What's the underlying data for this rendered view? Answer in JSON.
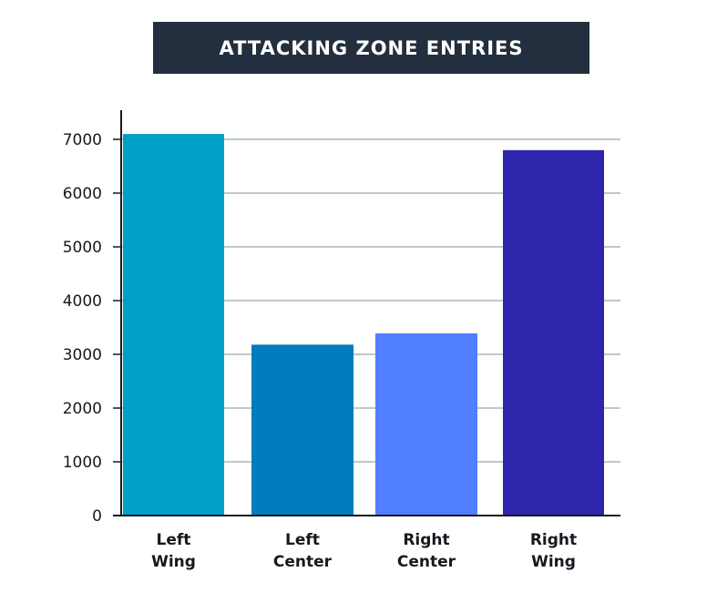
{
  "chart_data": {
    "type": "bar",
    "title": "ATTACKING ZONE ENTRIES",
    "xlabel": "",
    "ylabel": "",
    "categories": [
      [
        "Left",
        "Wing"
      ],
      [
        "Left",
        "Center"
      ],
      [
        "Right",
        "Center"
      ],
      [
        "Right",
        "Wing"
      ]
    ],
    "values": [
      7100,
      3180,
      3390,
      6800
    ],
    "bar_colors": [
      "#00a1c9",
      "#007dbc",
      "#527fff",
      "#2e27ad"
    ],
    "ylim": [
      0,
      7000
    ],
    "yticks": [
      0,
      1000,
      2000,
      3000,
      4000,
      5000,
      6000,
      7000
    ],
    "grid": true,
    "legend": "none",
    "colors": {
      "title_background": "#232f3e",
      "title_text": "#ffffff",
      "gridline": "#aab7b8",
      "axis": "#16191f",
      "label_text": "#16191f"
    }
  }
}
